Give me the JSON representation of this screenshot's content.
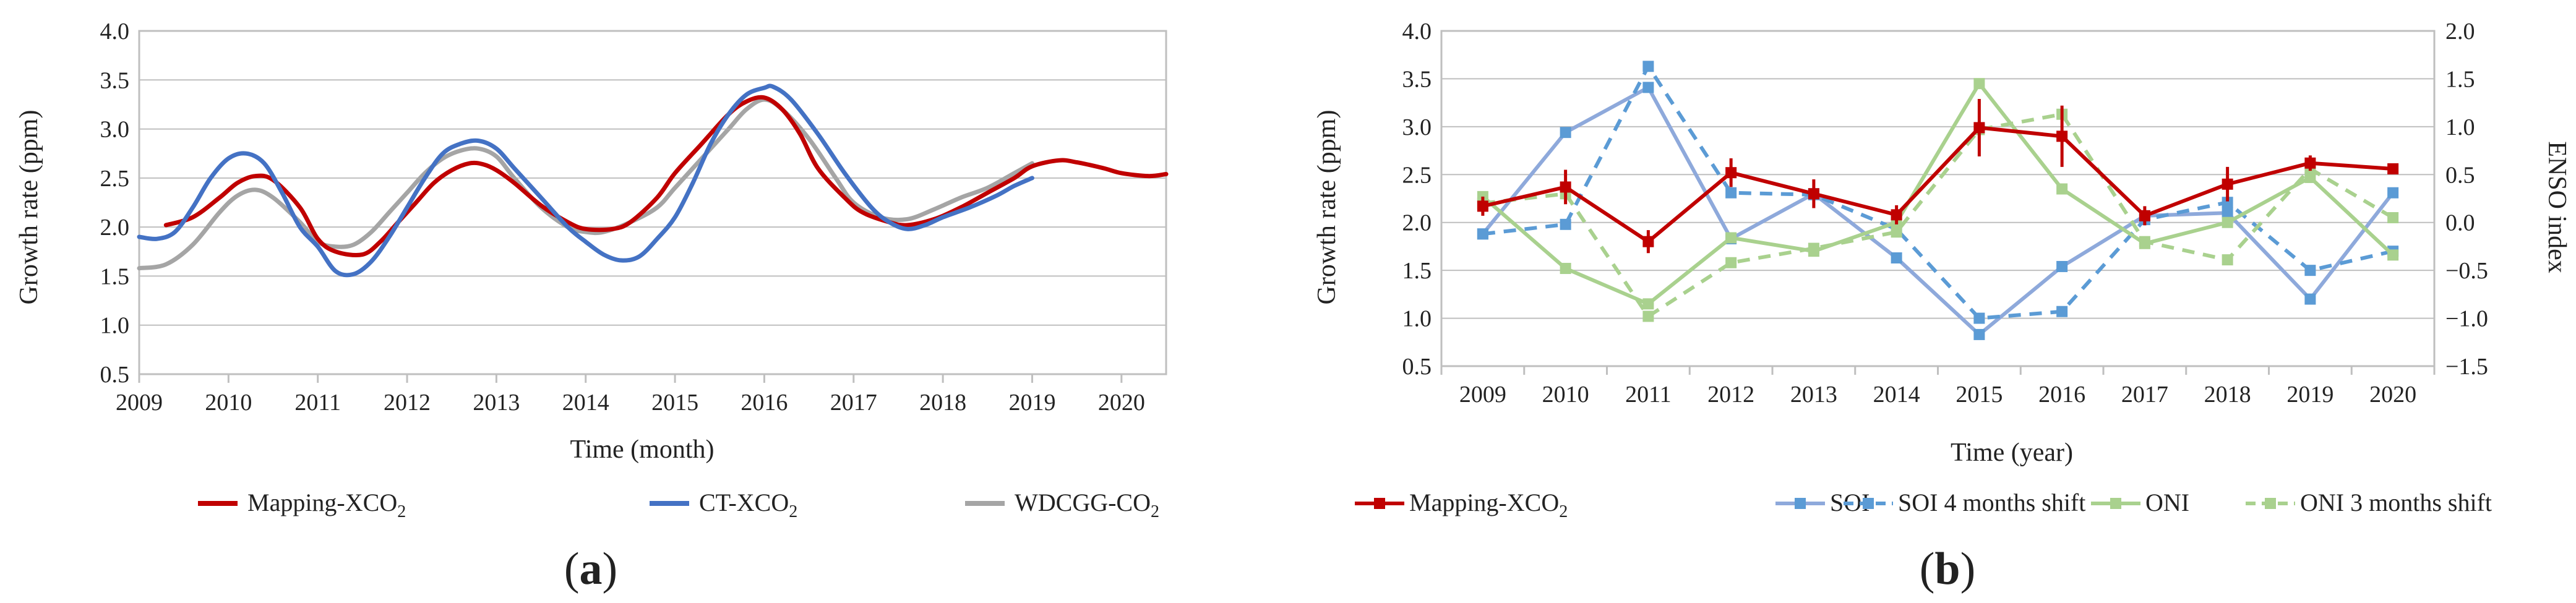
{
  "figure_labels": {
    "a": "a",
    "b": "b"
  },
  "colors": {
    "red": "#C00000",
    "blue": "#4472C4",
    "gray": "#A5A5A5",
    "lightblue": "#8EA9DB",
    "midblue": "#5B9BD5",
    "green": "#A9D18E",
    "axis": "#BFBFBF"
  },
  "chart_data": [
    {
      "id": "a",
      "type": "line",
      "xlabel": "Time (month)",
      "ylabel": "Growth rate (ppm)",
      "xlim": [
        2009,
        2020.5
      ],
      "ylim": [
        0.5,
        4.0
      ],
      "xticks": [
        "2009",
        "2010",
        "2011",
        "2012",
        "2013",
        "2014",
        "2015",
        "2016",
        "2017",
        "2018",
        "2019",
        "2020"
      ],
      "yticks": [
        "0.5",
        "1.0",
        "1.5",
        "2.0",
        "2.5",
        "3.0",
        "3.5",
        "4.0"
      ],
      "legend_position": "bottom",
      "series": [
        {
          "name": "Mapping-XCO",
          "subscript": "2",
          "color": "#C00000",
          "x": [
            2009.3,
            2009.6,
            2009.9,
            2010.1,
            2010.3,
            2010.5,
            2010.8,
            2011.0,
            2011.2,
            2011.5,
            2011.7,
            2011.9,
            2012.1,
            2012.3,
            2012.5,
            2012.7,
            2012.85,
            2013.0,
            2013.2,
            2013.5,
            2013.8,
            2014.0,
            2014.3,
            2014.5,
            2014.8,
            2015.0,
            2015.3,
            2015.6,
            2015.8,
            2016.0,
            2016.2,
            2016.4,
            2016.6,
            2016.9,
            2017.1,
            2017.4,
            2017.6,
            2017.9,
            2018.2,
            2018.5,
            2018.8,
            2019.0,
            2019.3,
            2019.5,
            2019.8,
            2020.0,
            2020.3,
            2020.5
          ],
          "y": [
            2.02,
            2.1,
            2.3,
            2.45,
            2.52,
            2.48,
            2.2,
            1.88,
            1.75,
            1.72,
            1.85,
            2.05,
            2.25,
            2.45,
            2.58,
            2.65,
            2.64,
            2.58,
            2.45,
            2.22,
            2.05,
            1.98,
            1.98,
            2.05,
            2.3,
            2.55,
            2.85,
            3.15,
            3.28,
            3.32,
            3.2,
            2.95,
            2.6,
            2.3,
            2.15,
            2.05,
            2.02,
            2.08,
            2.2,
            2.35,
            2.5,
            2.62,
            2.68,
            2.66,
            2.6,
            2.55,
            2.52,
            2.54
          ]
        },
        {
          "name": "CT-XCO",
          "subscript": "2",
          "color": "#4472C4",
          "x": [
            2009.0,
            2009.2,
            2009.4,
            2009.6,
            2009.8,
            2010.0,
            2010.2,
            2010.4,
            2010.6,
            2010.8,
            2011.0,
            2011.2,
            2011.4,
            2011.6,
            2011.8,
            2012.0,
            2012.2,
            2012.4,
            2012.6,
            2012.8,
            2013.0,
            2013.2,
            2013.5,
            2013.8,
            2014.0,
            2014.2,
            2014.4,
            2014.6,
            2014.8,
            2015.0,
            2015.2,
            2015.4,
            2015.6,
            2015.8,
            2016.0,
            2016.1,
            2016.3,
            2016.6,
            2016.9,
            2017.2,
            2017.4,
            2017.6,
            2017.8,
            2018.0,
            2018.3,
            2018.6,
            2018.8,
            2019.0
          ],
          "y": [
            1.9,
            1.88,
            1.95,
            2.2,
            2.5,
            2.7,
            2.75,
            2.65,
            2.35,
            2.0,
            1.8,
            1.55,
            1.52,
            1.65,
            1.9,
            2.2,
            2.5,
            2.75,
            2.85,
            2.88,
            2.8,
            2.6,
            2.3,
            2.0,
            1.85,
            1.72,
            1.66,
            1.7,
            1.88,
            2.1,
            2.45,
            2.85,
            3.15,
            3.35,
            3.42,
            3.43,
            3.3,
            2.95,
            2.55,
            2.2,
            2.05,
            1.98,
            2.02,
            2.1,
            2.2,
            2.32,
            2.42,
            2.5
          ]
        },
        {
          "name": "WDCGG-CO",
          "subscript": "2",
          "color": "#A5A5A5",
          "x": [
            2009.0,
            2009.3,
            2009.6,
            2009.9,
            2010.1,
            2010.3,
            2010.5,
            2010.8,
            2011.0,
            2011.2,
            2011.4,
            2011.6,
            2011.8,
            2012.0,
            2012.2,
            2012.4,
            2012.6,
            2012.8,
            2013.0,
            2013.2,
            2013.5,
            2013.8,
            2014.0,
            2014.2,
            2014.5,
            2014.8,
            2015.0,
            2015.3,
            2015.6,
            2015.8,
            2016.0,
            2016.2,
            2016.5,
            2016.8,
            2017.0,
            2017.3,
            2017.6,
            2017.9,
            2018.2,
            2018.5,
            2018.8,
            2019.0
          ],
          "y": [
            1.58,
            1.62,
            1.82,
            2.15,
            2.32,
            2.38,
            2.3,
            2.05,
            1.85,
            1.8,
            1.82,
            1.95,
            2.15,
            2.35,
            2.55,
            2.7,
            2.78,
            2.8,
            2.72,
            2.5,
            2.2,
            2.0,
            1.95,
            1.95,
            2.05,
            2.2,
            2.4,
            2.7,
            3.0,
            3.2,
            3.3,
            3.2,
            2.9,
            2.5,
            2.25,
            2.1,
            2.08,
            2.18,
            2.3,
            2.4,
            2.55,
            2.65
          ]
        }
      ]
    },
    {
      "id": "b",
      "type": "line",
      "xlabel": "Time (year)",
      "ylabel": "Growth rate (ppm)",
      "y2label": "ENSO index",
      "categories": [
        "2009",
        "2010",
        "2011",
        "2012",
        "2013",
        "2014",
        "2015",
        "2016",
        "2017",
        "2018",
        "2019",
        "2020"
      ],
      "ylim": [
        0.5,
        4.0
      ],
      "y2lim": [
        -1.5,
        2.0
      ],
      "yticks": [
        "0.5",
        "1.0",
        "1.5",
        "2.0",
        "2.5",
        "3.0",
        "3.5",
        "4.0"
      ],
      "y2ticks": [
        "−1.5",
        "−1.0",
        "−0.5",
        "0.0",
        "0.5",
        "1.0",
        "1.5",
        "2.0"
      ],
      "legend_position": "bottom",
      "series": [
        {
          "name": "Mapping-XCO",
          "subscript": "2",
          "axis": "left",
          "color": "#C00000",
          "dash": false,
          "values": [
            2.17,
            2.37,
            1.8,
            2.52,
            2.3,
            2.08,
            2.99,
            2.9,
            2.07,
            2.4,
            2.62,
            2.56
          ],
          "error": [
            0.1,
            0.18,
            0.12,
            0.15,
            0.15,
            0.1,
            0.3,
            0.32,
            0.1,
            0.18,
            0.08,
            0.05
          ]
        },
        {
          "name": "SOI",
          "axis": "right",
          "color": "#8EA9DB",
          "dash": false,
          "values": [
            -0.12,
            0.94,
            1.41,
            -0.17,
            0.3,
            -0.37,
            -1.17,
            -0.46,
            0.07,
            0.1,
            -0.8,
            0.31
          ]
        },
        {
          "name": "SOI 4 months shift",
          "axis": "right",
          "color": "#5B9BD5",
          "dash": true,
          "values": [
            -0.12,
            -0.02,
            1.63,
            0.31,
            0.29,
            -0.07,
            -1.0,
            -0.93,
            0.03,
            0.21,
            -0.5,
            -0.3
          ]
        },
        {
          "name": "ONI",
          "axis": "right",
          "color": "#A9D18E",
          "dash": false,
          "values": [
            0.27,
            -0.48,
            -0.85,
            -0.16,
            -0.3,
            0.0,
            1.45,
            0.35,
            -0.22,
            0.0,
            0.47,
            -0.34
          ]
        },
        {
          "name": "ONI 3 months shift",
          "axis": "right",
          "color": "#A9D18E",
          "dash": true,
          "values": [
            0.2,
            0.3,
            -0.98,
            -0.42,
            -0.27,
            -0.1,
            0.97,
            1.13,
            -0.2,
            -0.39,
            0.56,
            0.05
          ]
        }
      ]
    }
  ]
}
